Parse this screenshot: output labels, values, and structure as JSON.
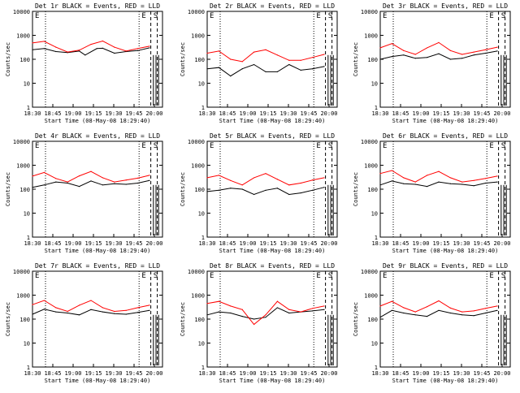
{
  "colors": {
    "events": "#000000",
    "lld": "#ff0000",
    "axis": "#000000",
    "background": "#ffffff"
  },
  "shared": {
    "xlabel": "Start Time (08-May-08 18:29:40)",
    "ylabel": "Counts/sec",
    "xticks": [
      "18:30",
      "18:45",
      "19:00",
      "19:15",
      "19:30",
      "19:45",
      "20:00"
    ],
    "yticks": [
      "1",
      "10",
      "100",
      "1000",
      "10000"
    ],
    "flag_labels": [
      "E",
      "S"
    ]
  },
  "chart_data": [
    {
      "type": "line",
      "title": "Det 1r BLACK = Events, RED = LLD",
      "ylim": [
        1,
        10000
      ],
      "xlabel": "Start Time (08-May-08 18:29:40)",
      "ylabel": "Counts/sec",
      "series": [
        {
          "name": "Events",
          "x": [
            0,
            10,
            20,
            30,
            40,
            45,
            55,
            60,
            70,
            80,
            90,
            100
          ],
          "values": [
            250,
            280,
            210,
            190,
            220,
            150,
            280,
            290,
            180,
            210,
            230,
            300
          ]
        },
        {
          "name": "LLD",
          "x": [
            0,
            10,
            20,
            30,
            40,
            50,
            60,
            70,
            80,
            90,
            100
          ],
          "values": [
            480,
            560,
            320,
            200,
            240,
            420,
            580,
            320,
            220,
            280,
            350
          ]
        }
      ]
    },
    {
      "type": "line",
      "title": "Det 2r BLACK = Events, RED = LLD",
      "ylim": [
        1,
        10000
      ],
      "xlabel": "Start Time (08-May-08 18:29:40)",
      "ylabel": "Counts/sec",
      "series": [
        {
          "name": "Events",
          "x": [
            0,
            10,
            20,
            30,
            40,
            50,
            60,
            70,
            80,
            90,
            100
          ],
          "values": [
            40,
            45,
            20,
            40,
            60,
            30,
            30,
            60,
            35,
            40,
            50
          ]
        },
        {
          "name": "LLD",
          "x": [
            0,
            10,
            20,
            30,
            40,
            50,
            60,
            70,
            80,
            90,
            100
          ],
          "values": [
            180,
            220,
            100,
            80,
            200,
            250,
            150,
            90,
            90,
            120,
            160
          ]
        }
      ]
    },
    {
      "type": "line",
      "title": "Det 3r BLACK = Events, RED = LLD",
      "ylim": [
        1,
        10000
      ],
      "xlabel": "Start Time (08-May-08 18:29:40)",
      "ylabel": "Counts/sec",
      "series": [
        {
          "name": "Events",
          "x": [
            0,
            10,
            20,
            30,
            40,
            50,
            60,
            70,
            80,
            90,
            100
          ],
          "values": [
            100,
            130,
            150,
            110,
            120,
            170,
            100,
            110,
            150,
            180,
            220
          ]
        },
        {
          "name": "LLD",
          "x": [
            0,
            10,
            20,
            30,
            40,
            50,
            60,
            70,
            80,
            90,
            100
          ],
          "values": [
            300,
            450,
            230,
            160,
            300,
            500,
            230,
            160,
            200,
            250,
            320
          ]
        }
      ]
    },
    {
      "type": "line",
      "title": "Det 4r BLACK = Events, RED = LLD",
      "ylim": [
        1,
        10000
      ],
      "xlabel": "Start Time (08-May-08 18:29:40)",
      "ylabel": "Counts/sec",
      "series": [
        {
          "name": "Events",
          "x": [
            0,
            10,
            20,
            30,
            40,
            50,
            60,
            70,
            80,
            90,
            100
          ],
          "values": [
            120,
            150,
            200,
            180,
            130,
            220,
            150,
            170,
            160,
            180,
            230
          ]
        },
        {
          "name": "LLD",
          "x": [
            0,
            10,
            20,
            30,
            40,
            50,
            60,
            70,
            80,
            90,
            100
          ],
          "values": [
            350,
            500,
            280,
            200,
            360,
            550,
            300,
            200,
            240,
            290,
            380
          ]
        }
      ]
    },
    {
      "type": "line",
      "title": "Det 5r BLACK = Events, RED = LLD",
      "ylim": [
        1,
        10000
      ],
      "xlabel": "Start Time (08-May-08 18:29:40)",
      "ylabel": "Counts/sec",
      "series": [
        {
          "name": "Events",
          "x": [
            0,
            10,
            20,
            30,
            40,
            50,
            60,
            70,
            80,
            90,
            100
          ],
          "values": [
            80,
            90,
            110,
            100,
            60,
            90,
            110,
            60,
            70,
            90,
            120
          ]
        },
        {
          "name": "LLD",
          "x": [
            0,
            10,
            20,
            30,
            40,
            50,
            60,
            70,
            80,
            90,
            100
          ],
          "values": [
            300,
            380,
            230,
            150,
            300,
            450,
            260,
            150,
            180,
            240,
            300
          ]
        }
      ]
    },
    {
      "type": "line",
      "title": "Det 6r BLACK = Events, RED = LLD",
      "ylim": [
        1,
        10000
      ],
      "xlabel": "Start Time (08-May-08 18:29:40)",
      "ylabel": "Counts/sec",
      "series": [
        {
          "name": "Events",
          "x": [
            0,
            10,
            20,
            30,
            40,
            50,
            60,
            70,
            80,
            90,
            100
          ],
          "values": [
            150,
            220,
            170,
            160,
            130,
            200,
            170,
            160,
            140,
            180,
            200
          ]
        },
        {
          "name": "LLD",
          "x": [
            0,
            10,
            20,
            30,
            40,
            50,
            60,
            70,
            80,
            90,
            100
          ],
          "values": [
            450,
            600,
            300,
            200,
            380,
            550,
            300,
            200,
            230,
            280,
            350
          ]
        }
      ]
    },
    {
      "type": "line",
      "title": "Det 7r BLACK = Events, RED = LLD",
      "ylim": [
        1,
        10000
      ],
      "xlabel": "Start Time (08-May-08 18:29:40)",
      "ylabel": "Counts/sec",
      "series": [
        {
          "name": "Events",
          "x": [
            0,
            10,
            20,
            30,
            40,
            50,
            60,
            70,
            80,
            90,
            100
          ],
          "values": [
            160,
            260,
            200,
            180,
            150,
            250,
            200,
            170,
            160,
            190,
            230
          ]
        },
        {
          "name": "LLD",
          "x": [
            0,
            10,
            20,
            30,
            40,
            50,
            60,
            70,
            80,
            90,
            100
          ],
          "values": [
            400,
            600,
            300,
            210,
            380,
            600,
            300,
            210,
            230,
            300,
            380
          ]
        }
      ]
    },
    {
      "type": "line",
      "title": "Det 8r BLACK = Events, RED = LLD",
      "ylim": [
        1,
        10000
      ],
      "xlabel": "Start Time (08-May-08 18:29:40)",
      "ylabel": "Counts/sec",
      "series": [
        {
          "name": "Events",
          "x": [
            0,
            10,
            20,
            30,
            40,
            50,
            60,
            70,
            80,
            90,
            100
          ],
          "values": [
            150,
            200,
            180,
            130,
            100,
            120,
            300,
            180,
            200,
            220,
            250
          ]
        },
        {
          "name": "LLD",
          "x": [
            0,
            10,
            20,
            30,
            40,
            50,
            60,
            70,
            80,
            90,
            100
          ],
          "values": [
            450,
            550,
            350,
            250,
            60,
            150,
            550,
            250,
            200,
            280,
            350
          ]
        }
      ]
    },
    {
      "type": "line",
      "title": "Det 9r BLACK = Events, RED = LLD",
      "ylim": [
        1,
        10000
      ],
      "xlabel": "Start Time (08-May-08 18:29:40)",
      "ylabel": "Counts/sec",
      "series": [
        {
          "name": "Events",
          "x": [
            0,
            10,
            20,
            30,
            40,
            50,
            60,
            70,
            80,
            90,
            100
          ],
          "values": [
            120,
            230,
            180,
            150,
            130,
            230,
            180,
            150,
            140,
            180,
            230
          ]
        },
        {
          "name": "LLD",
          "x": [
            0,
            10,
            20,
            30,
            40,
            50,
            60,
            70,
            80,
            90,
            100
          ],
          "values": [
            350,
            550,
            300,
            200,
            330,
            580,
            290,
            200,
            220,
            280,
            350
          ]
        }
      ]
    }
  ]
}
